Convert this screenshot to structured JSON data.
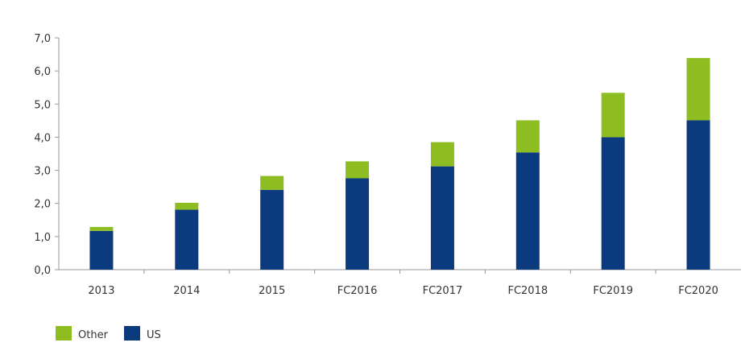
{
  "chart_data": {
    "type": "bar",
    "stacked": true,
    "title": "",
    "xlabel": "",
    "ylabel": "",
    "ylim": [
      0,
      7
    ],
    "yticks": [
      "0,0",
      "1,0",
      "2,0",
      "3,0",
      "4,0",
      "5,0",
      "6,0",
      "7,0"
    ],
    "categories": [
      "2013",
      "2014",
      "2015",
      "FC2016",
      "FC2017",
      "FC2018",
      "FC2019",
      "FC2020"
    ],
    "series": [
      {
        "name": "US",
        "color": "#0b3a7e",
        "values": [
          1.17,
          1.81,
          2.41,
          2.76,
          3.12,
          3.54,
          4.0,
          4.51
        ]
      },
      {
        "name": "Other",
        "color": "#8dbd21",
        "values": [
          0.12,
          0.21,
          0.42,
          0.51,
          0.73,
          0.97,
          1.34,
          1.88
        ]
      }
    ],
    "legend": {
      "placement": "bottom-left",
      "items": [
        "Other",
        "US"
      ]
    },
    "grid": false
  }
}
